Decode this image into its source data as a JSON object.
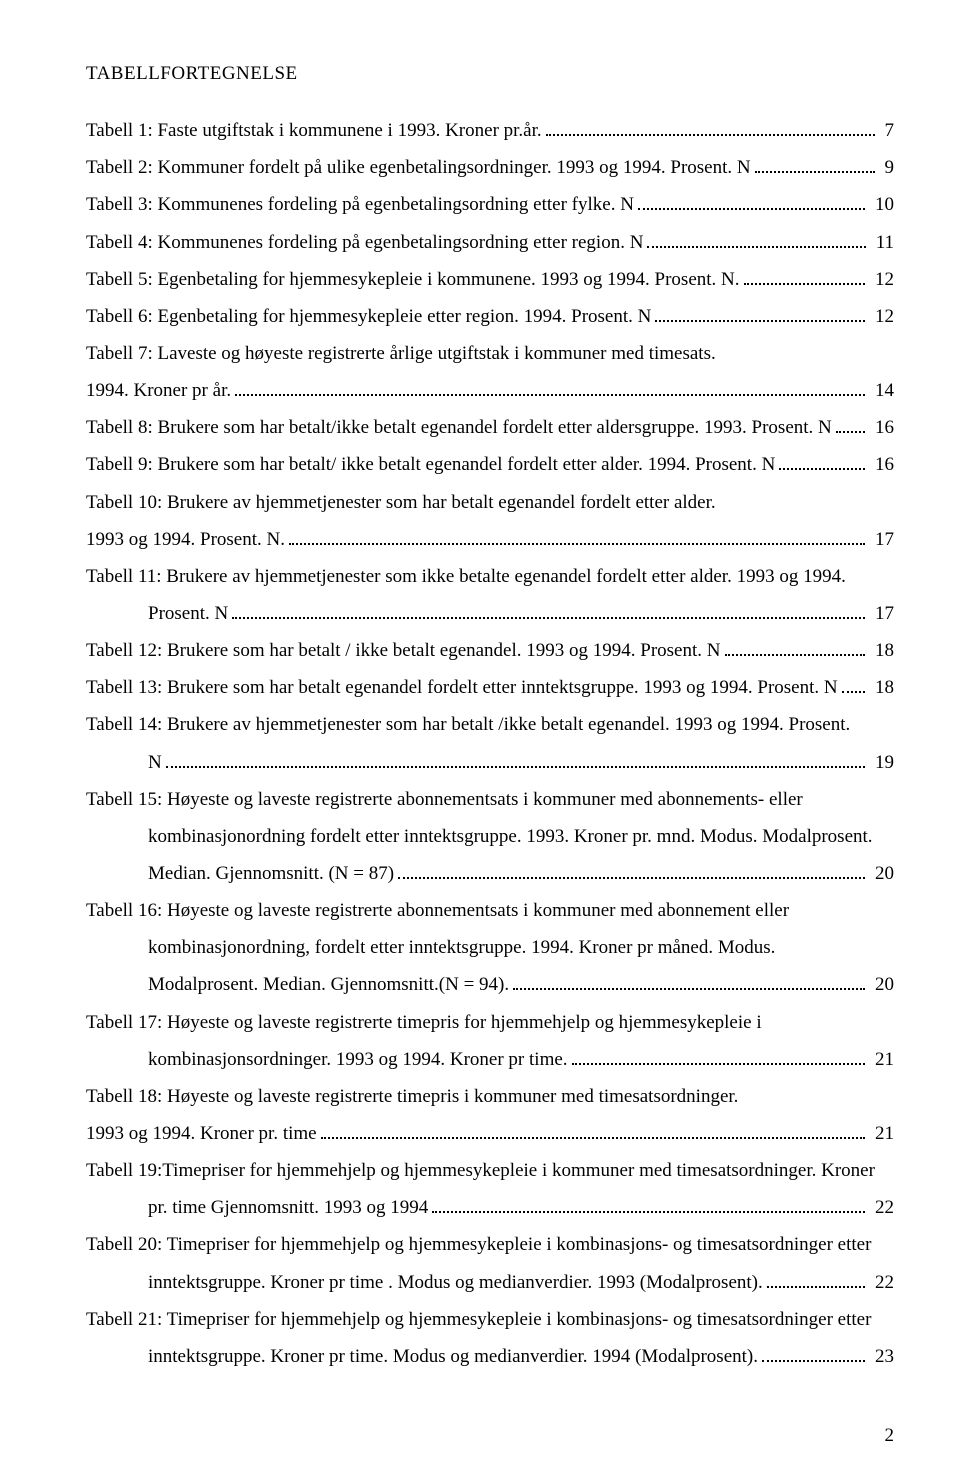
{
  "heading": "TABELLFORTEGNELSE",
  "entries": [
    {
      "text": "Tabell 1: Faste utgiftstak i kommunene i 1993. Kroner pr.år.",
      "page": "7"
    },
    {
      "text": "Tabell 2: Kommuner fordelt på ulike egenbetalingsordninger. 1993 og 1994. Prosent. N",
      "page": "9"
    },
    {
      "text": "Tabell 3: Kommunenes fordeling på egenbetalingsordning etter fylke. N",
      "page": "10"
    },
    {
      "text": "Tabell 4: Kommunenes fordeling på egenbetalingsordning etter region. N",
      "page": "11"
    },
    {
      "text": "Tabell 5: Egenbetaling for hjemmesykepleie i kommunene. 1993 og 1994. Prosent. N.",
      "page": "12"
    },
    {
      "text": "Tabell 6: Egenbetaling for hjemmesykepleie etter region. 1994. Prosent. N",
      "page": "12"
    },
    {
      "text": "Tabell 7: Laveste og høyeste registrerte årlige utgiftstak i kommuner med timesats."
    },
    {
      "text": "1994. Kroner pr år.",
      "page": "14"
    },
    {
      "text": "Tabell 8: Brukere som har betalt/ikke betalt egenandel fordelt etter aldersgruppe. 1993. Prosent. N",
      "page": "16"
    },
    {
      "text": "Tabell 9: Brukere som har betalt/ ikke betalt egenandel fordelt etter alder. 1994. Prosent. N",
      "page": "16"
    },
    {
      "text": "Tabell 10: Brukere  av hjemmetjenester som har betalt egenandel fordelt etter alder."
    },
    {
      "text": "1993 og 1994. Prosent. N.",
      "page": "17"
    },
    {
      "text": "Tabell 11: Brukere av hjemmetjenester som ikke betalte egenandel fordelt etter alder. 1993 og 1994."
    },
    {
      "indent": true,
      "text": "Prosent. N",
      "page": "17"
    },
    {
      "text": "Tabell 12: Brukere som har betalt / ikke betalt egenandel. 1993 og 1994. Prosent. N",
      "page": "18"
    },
    {
      "text": "Tabell 13: Brukere som har betalt egenandel fordelt etter inntektsgruppe. 1993 og 1994. Prosent. N",
      "page": "18"
    },
    {
      "text": "Tabell 14: Brukere av hjemmetjenester som har betalt /ikke betalt egenandel. 1993 og 1994. Prosent."
    },
    {
      "indent": true,
      "text": "N",
      "page": "19"
    },
    {
      "text": "Tabell 15: Høyeste og laveste registrerte abonnementsats  i kommuner med abonnements- eller"
    },
    {
      "indent": true,
      "text": "kombinasjonordning fordelt etter inntektsgruppe. 1993. Kroner pr. mnd. Modus. Modalprosent."
    },
    {
      "indent": true,
      "text": "Median. Gjennomsnitt. (N = 87)",
      "page": "20"
    },
    {
      "text": "Tabell 16: Høyeste og laveste registrerte abonnementsats i kommuner med abonnement eller"
    },
    {
      "indent": true,
      "text": "kombinasjonordning, fordelt etter inntektsgruppe. 1994. Kroner pr måned. Modus."
    },
    {
      "indent": true,
      "text": "Modalprosent. Median. Gjennomsnitt.(N = 94).",
      "page": "20"
    },
    {
      "text": "Tabell 17: Høyeste og laveste registrerte timepris for hjemmehjelp og hjemmesykepleie i"
    },
    {
      "indent": true,
      "text": "kombinasjonsordninger. 1993 og 1994. Kroner pr time.",
      "page": "21"
    },
    {
      "text": "Tabell 18: Høyeste og laveste registrerte timepris i kommuner med timesatsordninger."
    },
    {
      "text": "1993 og 1994. Kroner pr. time",
      "page": "21"
    },
    {
      "text": "Tabell 19:Timepriser for hjemmehjelp og hjemmesykepleie i kommuner med timesatsordninger. Kroner"
    },
    {
      "indent": true,
      "text": "pr. time Gjennomsnitt. 1993 og 1994",
      "page": "22"
    },
    {
      "text": "Tabell 20: Timepriser for hjemmehjelp og hjemmesykepleie i kombinasjons- og timesatsordninger etter"
    },
    {
      "indent": true,
      "text": "inntektsgruppe. Kroner pr time . Modus og medianverdier. 1993 (Modalprosent).",
      "page": "22"
    },
    {
      "text": "Tabell 21: Timepriser for hjemmehjelp og hjemmesykepleie i kombinasjons- og timesatsordninger etter"
    },
    {
      "indent": true,
      "text": "inntektsgruppe. Kroner pr time. Modus og medianverdier. 1994 (Modalprosent).",
      "page": "23"
    }
  ],
  "pageNumber": "2"
}
